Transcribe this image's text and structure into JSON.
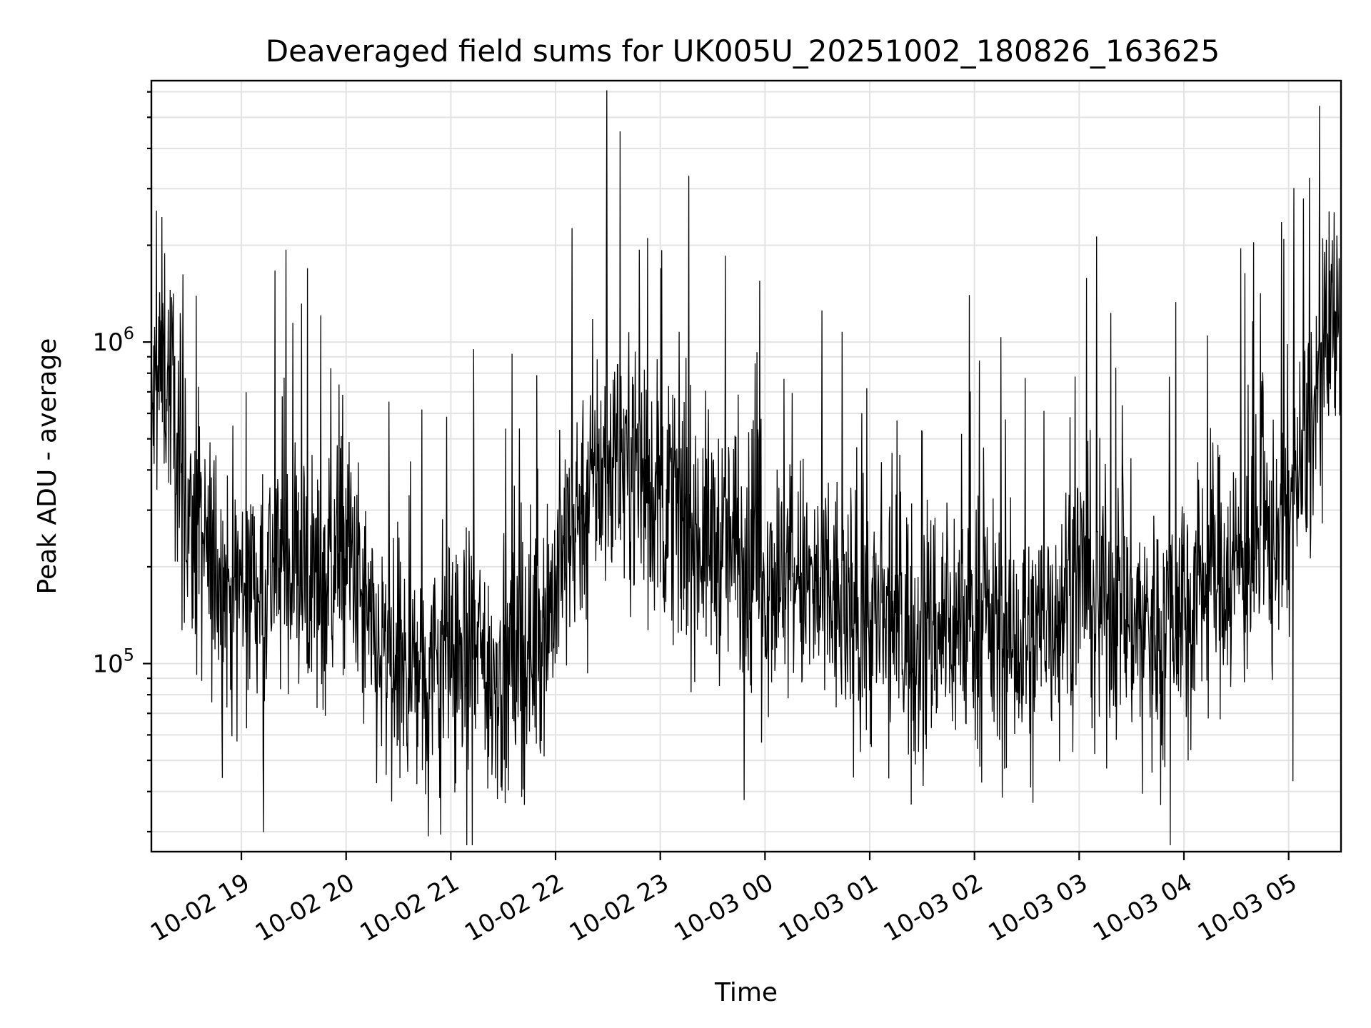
{
  "chart_data": {
    "type": "line",
    "title": "Deaveraged field sums for UK005U_20251002_180826_163625",
    "xlabel": "Time",
    "ylabel": "Peak ADU - average",
    "yscale": "log",
    "ylim": [
      26000,
      6500000
    ],
    "xlim": [
      "2025-10-02 18:08:26",
      "2025-10-03 05:30:00"
    ],
    "grid": true,
    "x_ticks": [
      {
        "time": "2025-10-02 19:00",
        "label": "10-02 19"
      },
      {
        "time": "2025-10-02 20:00",
        "label": "10-02 20"
      },
      {
        "time": "2025-10-02 21:00",
        "label": "10-02 21"
      },
      {
        "time": "2025-10-02 22:00",
        "label": "10-02 22"
      },
      {
        "time": "2025-10-02 23:00",
        "label": "10-02 23"
      },
      {
        "time": "2025-10-03 00:00",
        "label": "10-03 00"
      },
      {
        "time": "2025-10-03 01:00",
        "label": "10-03 01"
      },
      {
        "time": "2025-10-03 02:00",
        "label": "10-03 02"
      },
      {
        "time": "2025-10-03 03:00",
        "label": "10-03 03"
      },
      {
        "time": "2025-10-03 04:00",
        "label": "10-03 04"
      },
      {
        "time": "2025-10-03 05:00",
        "label": "10-03 05"
      }
    ],
    "y_ticks": [
      {
        "value": 100000,
        "base": "10",
        "exp": "5"
      },
      {
        "value": 1000000,
        "base": "10",
        "exp": "6"
      }
    ],
    "series_color": "#000000",
    "series": [
      {
        "x": [
          "2025-10-02 18:08",
          "2025-10-02 18:15",
          "2025-10-02 18:20",
          "2025-10-02 18:30",
          "2025-10-02 18:45",
          "2025-10-02 19:00",
          "2025-10-02 19:15",
          "2025-10-02 19:30",
          "2025-10-02 19:45",
          "2025-10-02 20:00",
          "2025-10-02 20:15",
          "2025-10-02 20:30",
          "2025-10-02 20:45",
          "2025-10-02 21:00",
          "2025-10-02 21:15",
          "2025-10-02 21:30",
          "2025-10-02 21:45",
          "2025-10-02 22:00",
          "2025-10-02 22:15",
          "2025-10-02 22:30",
          "2025-10-02 22:45",
          "2025-10-02 23:00",
          "2025-10-02 23:15",
          "2025-10-02 23:30",
          "2025-10-02 23:45",
          "2025-10-03 00:00",
          "2025-10-03 00:15",
          "2025-10-03 00:30",
          "2025-10-03 00:45",
          "2025-10-03 01:00",
          "2025-10-03 01:15",
          "2025-10-03 01:30",
          "2025-10-03 01:45",
          "2025-10-03 02:00",
          "2025-10-03 02:15",
          "2025-10-03 02:30",
          "2025-10-03 02:45",
          "2025-10-03 03:00",
          "2025-10-03 03:15",
          "2025-10-03 03:30",
          "2025-10-03 03:45",
          "2025-10-03 04:00",
          "2025-10-03 04:15",
          "2025-10-03 04:30",
          "2025-10-03 04:45",
          "2025-10-03 05:00",
          "2025-10-03 05:10",
          "2025-10-03 05:20",
          "2025-10-03 05:30"
        ],
        "y": [
          550000,
          900000,
          700000,
          260000,
          190000,
          175000,
          195000,
          210000,
          170000,
          240000,
          110000,
          90000,
          100000,
          110000,
          105000,
          90000,
          110000,
          170000,
          330000,
          430000,
          440000,
          330000,
          270000,
          240000,
          220000,
          200000,
          190000,
          160000,
          150000,
          135000,
          125000,
          135000,
          130000,
          140000,
          120000,
          110000,
          150000,
          190000,
          160000,
          140000,
          130000,
          160000,
          190000,
          200000,
          230000,
          300000,
          450000,
          800000,
          1300000
        ]
      }
    ]
  }
}
